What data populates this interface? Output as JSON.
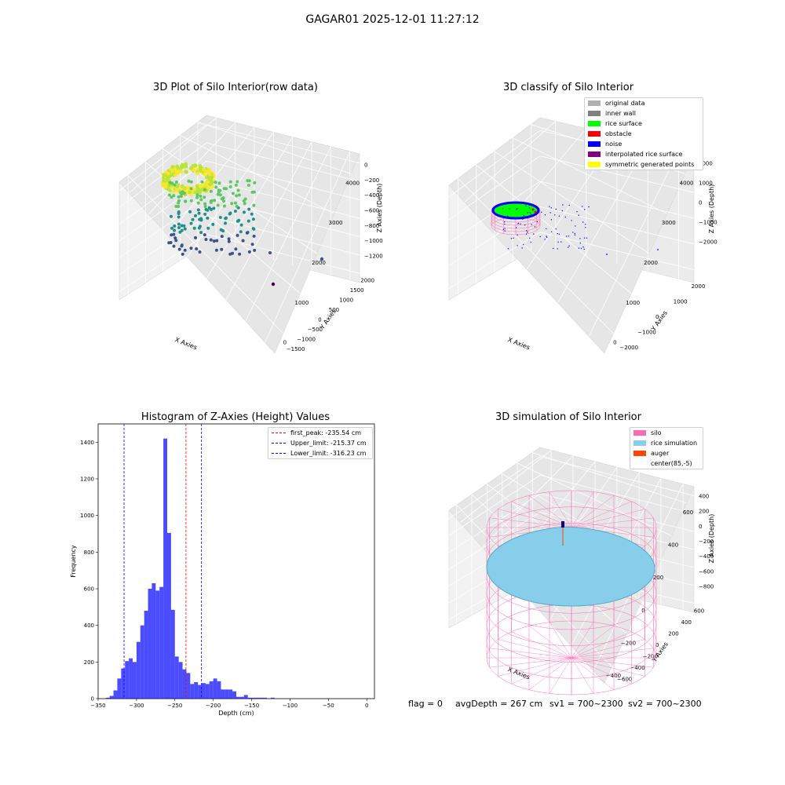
{
  "suptitle": "GAGAR01 2025-12-01 11:27:12",
  "footer": {
    "flag": "flag = 0",
    "avg": "avgDepth = 267 cm",
    "sv1": "sv1 = 700~2300",
    "sv2": "sv2 = 700~2300"
  },
  "chart_data": [
    {
      "type": "scatter",
      "title": "3D Plot of Silo Interior(row data)",
      "xlabel": "X Axies",
      "ylabel": "Y Axies",
      "zlabel": "Z Axies (Depth)",
      "x_ticks": [
        "0",
        "1000",
        "2000",
        "3000",
        "4000"
      ],
      "y_ticks": [
        "−1500",
        "−1000",
        "−500",
        "0",
        "500",
        "1000",
        "1500",
        "2000"
      ],
      "z_ticks": [
        "−1200",
        "−1000",
        "−800",
        "−600",
        "−400",
        "−200",
        "0"
      ],
      "colormap": [
        "#440154",
        "#3b528b",
        "#21908c",
        "#5dc863",
        "#fde725"
      ],
      "grid": true
    },
    {
      "type": "scatter",
      "title": "3D classify of Silo Interior",
      "xlabel": "X Axies",
      "ylabel": "Y Axies",
      "zlabel": "Z Axies (Depth)",
      "x_ticks": [
        "0",
        "1000",
        "2000",
        "3000",
        "4000"
      ],
      "y_ticks": [
        "−2000",
        "−1000",
        "0",
        "1000",
        "2000"
      ],
      "z_ticks": [
        "−2000",
        "−1000",
        "0",
        "1000",
        "2000"
      ],
      "legend": [
        {
          "label": "original data",
          "color": "#b0b0b0"
        },
        {
          "label": "inner wall",
          "color": "#808080"
        },
        {
          "label": "rice surface",
          "color": "#00ff00"
        },
        {
          "label": "obstacle",
          "color": "#ff0000"
        },
        {
          "label": "noise",
          "color": "#0000ff"
        },
        {
          "label": "interpolated rice surface",
          "color": "#800080"
        },
        {
          "label": "symmetric generated points",
          "color": "#ffff00"
        }
      ],
      "legend_loc": "upper right",
      "grid": true
    },
    {
      "type": "bar",
      "title": "Histogram of Z-Axies (Height) Values",
      "xlabel": "Depth (cm)",
      "ylabel": "Frequency",
      "xlim": [
        -350,
        10
      ],
      "ylim": [
        0,
        1500
      ],
      "x_ticks": [
        -350,
        -300,
        -250,
        -200,
        -150,
        -100,
        -50,
        0
      ],
      "y_ticks": [
        0,
        200,
        400,
        600,
        800,
        1000,
        1200,
        1400
      ],
      "bar_color": "#0000ff",
      "bins_start": -340,
      "bin_width": 5,
      "values": [
        5,
        15,
        45,
        110,
        165,
        205,
        220,
        200,
        310,
        400,
        480,
        600,
        630,
        590,
        610,
        1420,
        905,
        485,
        230,
        200,
        160,
        140,
        80,
        90,
        75,
        85,
        80,
        95,
        110,
        95,
        50,
        50,
        50,
        40,
        10,
        10,
        20,
        5,
        5,
        5,
        5,
        5,
        0,
        5
      ],
      "vlines": [
        {
          "label": "first_peak: -235.54 cm",
          "x": -235.54,
          "color": "#ff0000"
        },
        {
          "label": "Upper_limit: -215.37 cm",
          "x": -215.37,
          "color": "#0000ff"
        },
        {
          "label": "Lower_limit: -316.23 cm",
          "x": -316.23,
          "color": "#0000ff"
        }
      ],
      "legend_loc": "upper right"
    },
    {
      "type": "surface",
      "title": "3D simulation of Silo Interior",
      "xlabel": "X Axies",
      "ylabel": "Y Axies",
      "zlabel": "Z Axies (Depth)",
      "x_ticks": [
        "−400",
        "−200",
        "0",
        "200",
        "400",
        "600"
      ],
      "y_ticks": [
        "−600",
        "−400",
        "−200",
        "0",
        "200",
        "400",
        "600"
      ],
      "z_ticks": [
        "−800",
        "−600",
        "−400",
        "−200",
        "0",
        "200",
        "400"
      ],
      "legend": [
        {
          "label": "silo",
          "color": "#ff69b4"
        },
        {
          "label": "rice simulation",
          "color": "#87ceeb"
        },
        {
          "label": "auger",
          "color": "#ff4500"
        },
        {
          "label": "center(85,-5)",
          "color": ""
        }
      ],
      "legend_loc": "upper right",
      "grid": true
    }
  ]
}
